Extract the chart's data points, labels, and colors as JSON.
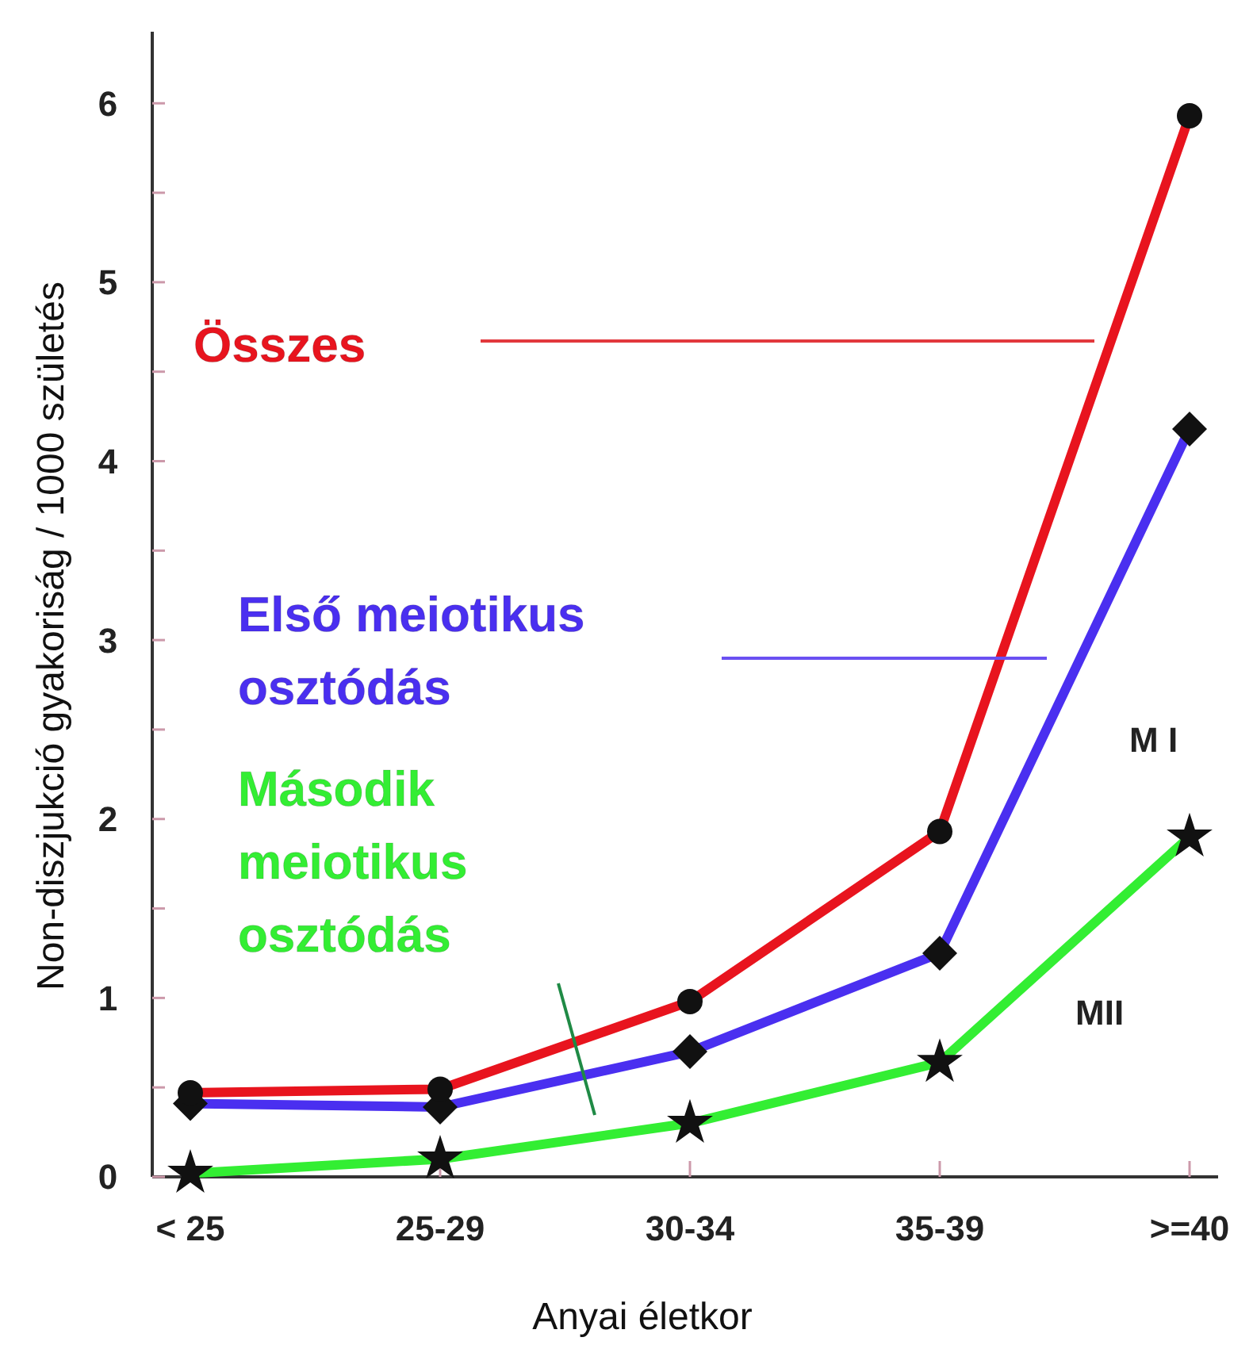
{
  "chart_data": {
    "type": "line",
    "xlabel": "Anyai életkor",
    "ylabel": "Non-diszjukció gyakoriság / 1000 születés",
    "categories": [
      "< 25",
      "25-29",
      "30-34",
      "35-39",
      ">=40"
    ],
    "ylim": [
      0,
      6.4
    ],
    "yticks": [
      0,
      {
        "value": 0.5,
        "label": null
      },
      1,
      {
        "value": 1.5,
        "label": null
      },
      2,
      {
        "value": 2.5,
        "label": null
      },
      3,
      {
        "value": 3.5,
        "label": null
      },
      4,
      {
        "value": 4.5,
        "label": null
      },
      5,
      {
        "value": 5.5,
        "label": null
      },
      6
    ],
    "grid": false,
    "legend": false,
    "line_style": "solid",
    "series": [
      {
        "name": "Összes",
        "color": "#e8141e",
        "marker": "circle",
        "values": [
          0.47,
          0.49,
          0.98,
          1.93,
          5.93
        ]
      },
      {
        "name": "Első meiotikus osztódás",
        "color": "#4a2ff0",
        "marker": "diamond",
        "values": [
          0.41,
          0.39,
          0.7,
          1.25,
          4.18
        ]
      },
      {
        "name": "Második meiotikus osztódás",
        "color": "#33ee33",
        "marker": "star",
        "values": [
          0.02,
          0.1,
          0.3,
          0.64,
          1.9
        ]
      }
    ],
    "annotations": [
      "M I",
      "MII"
    ]
  }
}
